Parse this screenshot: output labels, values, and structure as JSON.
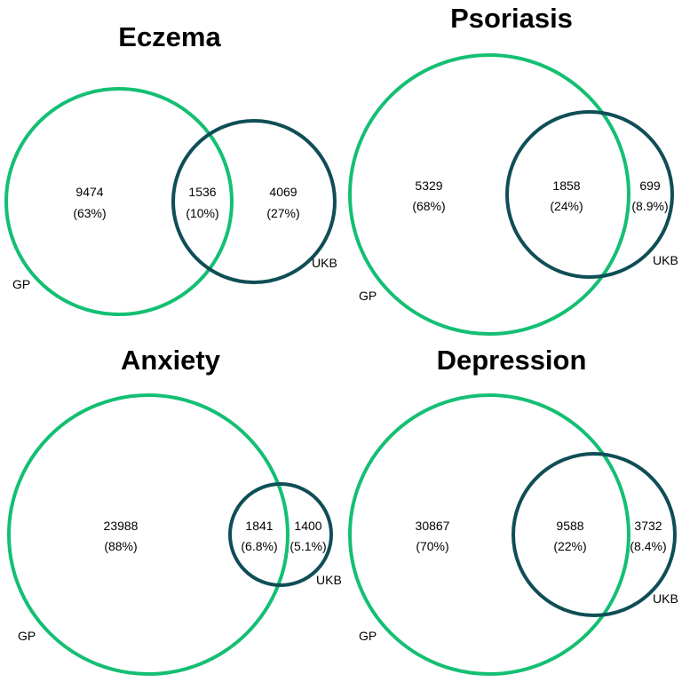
{
  "colors": {
    "gp": "#14bf73",
    "ukb": "#0f4e56",
    "text": "#000000"
  },
  "panels": [
    {
      "title": "Eczema",
      "gp_label": "GP",
      "ukb_label": "UKB",
      "gp_only": {
        "count": "9474",
        "pct": "(63%)"
      },
      "both": {
        "count": "1536",
        "pct": "(10%)"
      },
      "ukb_only": {
        "count": "4069",
        "pct": "(27%)"
      }
    },
    {
      "title": "Psoriasis",
      "gp_label": "GP",
      "ukb_label": "UKB",
      "gp_only": {
        "count": "5329",
        "pct": "(68%)"
      },
      "both": {
        "count": "1858",
        "pct": "(24%)"
      },
      "ukb_only": {
        "count": "699",
        "pct": "(8.9%)"
      }
    },
    {
      "title": "Anxiety",
      "gp_label": "GP",
      "ukb_label": "UKB",
      "gp_only": {
        "count": "23988",
        "pct": "(88%)"
      },
      "both": {
        "count": "1841",
        "pct": "(6.8%)"
      },
      "ukb_only": {
        "count": "1400",
        "pct": "(5.1%)"
      }
    },
    {
      "title": "Depression",
      "gp_label": "GP",
      "ukb_label": "UKB",
      "gp_only": {
        "count": "30867",
        "pct": "(70%)"
      },
      "both": {
        "count": "9588",
        "pct": "(22%)"
      },
      "ukb_only": {
        "count": "3732",
        "pct": "(8.4%)"
      }
    }
  ]
}
